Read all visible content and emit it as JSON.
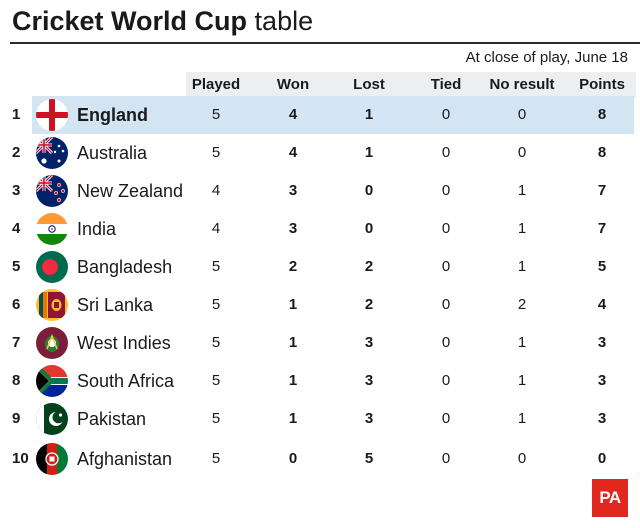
{
  "header": {
    "title_bold": "Cricket World Cup",
    "title_rest": "table",
    "subtitle": "At close of play, June 18"
  },
  "columns": {
    "played": "Played",
    "won": "Won",
    "lost": "Lost",
    "tied": "Tied",
    "no_result": "No result",
    "points": "Points"
  },
  "rows": [
    {
      "rank": "1",
      "team": "England",
      "flag": "england-flag-icon",
      "played": "5",
      "won": "4",
      "lost": "1",
      "tied": "0",
      "no_result": "0",
      "points": "8",
      "highlighted": true
    },
    {
      "rank": "2",
      "team": "Australia",
      "flag": "australia-flag-icon",
      "played": "5",
      "won": "4",
      "lost": "1",
      "tied": "0",
      "no_result": "0",
      "points": "8"
    },
    {
      "rank": "3",
      "team": "New Zealand",
      "flag": "new-zealand-flag-icon",
      "played": "4",
      "won": "3",
      "lost": "0",
      "tied": "0",
      "no_result": "1",
      "points": "7"
    },
    {
      "rank": "4",
      "team": "India",
      "flag": "india-flag-icon",
      "played": "4",
      "won": "3",
      "lost": "0",
      "tied": "0",
      "no_result": "1",
      "points": "7"
    },
    {
      "rank": "5",
      "team": "Bangladesh",
      "flag": "bangladesh-flag-icon",
      "played": "5",
      "won": "2",
      "lost": "2",
      "tied": "0",
      "no_result": "1",
      "points": "5"
    },
    {
      "rank": "6",
      "team": "Sri Lanka",
      "flag": "sri-lanka-flag-icon",
      "played": "5",
      "won": "1",
      "lost": "2",
      "tied": "0",
      "no_result": "2",
      "points": "4"
    },
    {
      "rank": "7",
      "team": "West Indies",
      "flag": "west-indies-flag-icon",
      "played": "5",
      "won": "1",
      "lost": "3",
      "tied": "0",
      "no_result": "1",
      "points": "3"
    },
    {
      "rank": "8",
      "team": "South Africa",
      "flag": "south-africa-flag-icon",
      "played": "5",
      "won": "1",
      "lost": "3",
      "tied": "0",
      "no_result": "1",
      "points": "3"
    },
    {
      "rank": "9",
      "team": "Pakistan",
      "flag": "pakistan-flag-icon",
      "played": "5",
      "won": "1",
      "lost": "3",
      "tied": "0",
      "no_result": "1",
      "points": "3"
    },
    {
      "rank": "10",
      "team": "Afghanistan",
      "flag": "afghanistan-flag-icon",
      "played": "5",
      "won": "0",
      "lost": "5",
      "tied": "0",
      "no_result": "0",
      "points": "0"
    }
  ],
  "logo": "PA",
  "colors": {
    "highlight": "#d3e4f2",
    "header_band": "#eceef0",
    "logo_red": "#e0281f"
  }
}
